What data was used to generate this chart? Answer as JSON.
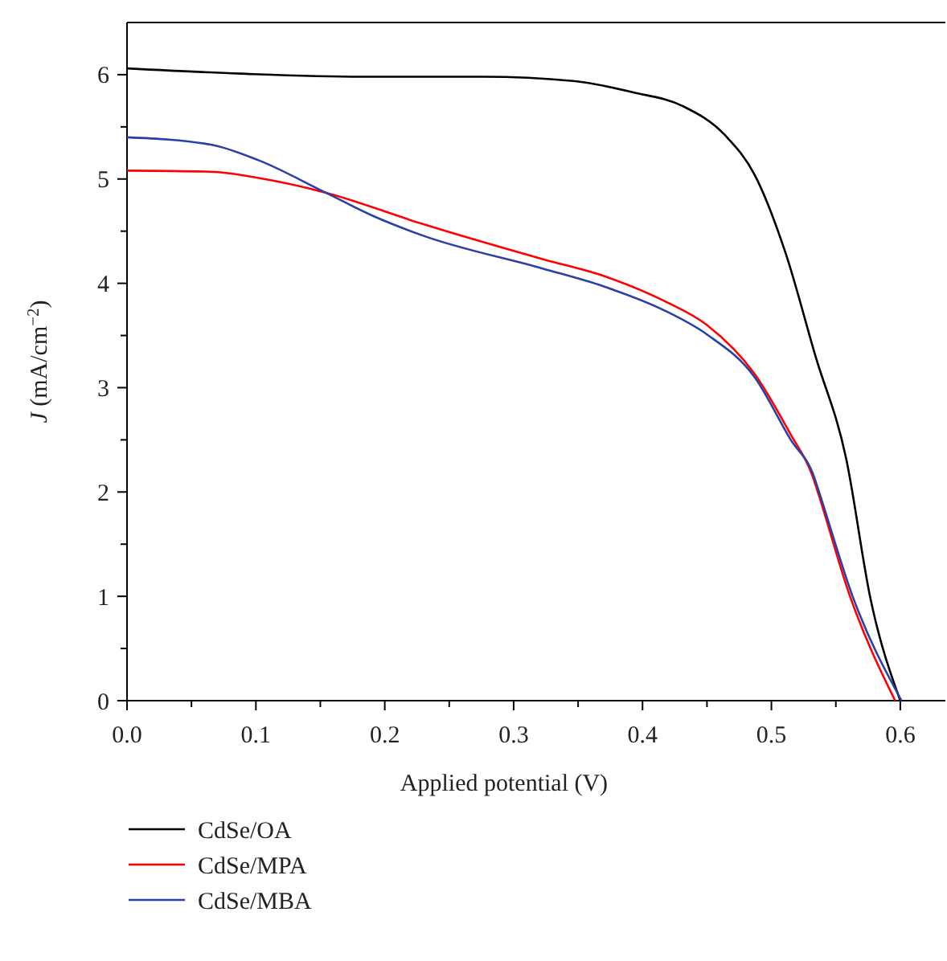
{
  "chart_data": {
    "type": "line",
    "xlabel": "Applied potential (V)",
    "ylabel": "J (mA/cm$^{−2}$)",
    "xlim": [
      0,
      0.635
    ],
    "ylim": [
      0,
      6.5
    ],
    "xticks": [
      {
        "value": 0,
        "label": "0.0"
      },
      0.1,
      0.2,
      0.3,
      0.4,
      0.5,
      0.6
    ],
    "yticks": [
      0,
      1,
      2,
      3,
      4,
      5,
      6
    ],
    "legend": "bottom left",
    "grid": false,
    "marker": "none",
    "line_style": "solid",
    "series": [
      {
        "name": "CdSe/OA",
        "color": "#000000",
        "x": [
          0,
          0.088,
          0.182,
          0.276,
          0.346,
          0.393,
          0.431,
          0.464,
          0.487,
          0.511,
          0.534,
          0.558,
          0.577,
          0.6
        ],
        "values": [
          6.06,
          6.01,
          5.98,
          5.98,
          5.94,
          5.83,
          5.7,
          5.42,
          5.04,
          4.29,
          3.31,
          2.32,
          0.97,
          0
        ]
      },
      {
        "name": "CdSe/MPA",
        "color": "#ff0000",
        "x": [
          0,
          0.065,
          0.102,
          0.154,
          0.229,
          0.323,
          0.37,
          0.417,
          0.45,
          0.487,
          0.515,
          0.532,
          0.536,
          0.561,
          0.596
        ],
        "values": [
          5.08,
          5.07,
          5.01,
          4.87,
          4.57,
          4.23,
          4.07,
          3.83,
          3.6,
          3.13,
          2.55,
          2.15,
          2,
          1,
          0
        ]
      },
      {
        "name": "CdSe/MBA",
        "color": "#2b3fa8",
        "x": [
          0,
          0.065,
          0.102,
          0.154,
          0.192,
          0.229,
          0.323,
          0.37,
          0.417,
          0.45,
          0.487,
          0.515,
          0.533,
          0.537,
          0.563,
          0.601
        ],
        "values": [
          5.4,
          5.33,
          5.18,
          4.87,
          4.64,
          4.46,
          4.14,
          3.97,
          3.74,
          3.51,
          3.1,
          2.5,
          2.15,
          2,
          1,
          0
        ]
      }
    ]
  }
}
